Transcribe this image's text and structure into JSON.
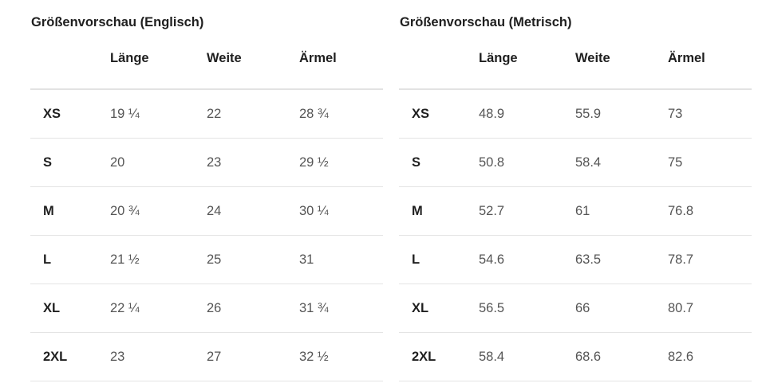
{
  "tables": [
    {
      "title": "Größenvorschau (Englisch)",
      "headers": [
        "",
        "Länge",
        "Weite",
        "Ärmel"
      ],
      "rows": [
        [
          "XS",
          "19 ¼",
          "22",
          "28 ¾"
        ],
        [
          "S",
          "20",
          "23",
          "29 ½"
        ],
        [
          "M",
          "20 ¾",
          "24",
          "30 ¼"
        ],
        [
          "L",
          "21 ½",
          "25",
          "31"
        ],
        [
          "XL",
          "22 ¼",
          "26",
          "31 ¾"
        ],
        [
          "2XL",
          "23",
          "27",
          "32 ½"
        ]
      ]
    },
    {
      "title": "Größenvorschau (Metrisch)",
      "headers": [
        "",
        "Länge",
        "Weite",
        "Ärmel"
      ],
      "rows": [
        [
          "XS",
          "48.9",
          "55.9",
          "73"
        ],
        [
          "S",
          "50.8",
          "58.4",
          "75"
        ],
        [
          "M",
          "52.7",
          "61",
          "76.8"
        ],
        [
          "L",
          "54.6",
          "63.5",
          "78.7"
        ],
        [
          "XL",
          "56.5",
          "66",
          "80.7"
        ],
        [
          "2XL",
          "58.4",
          "68.6",
          "82.6"
        ]
      ]
    }
  ]
}
